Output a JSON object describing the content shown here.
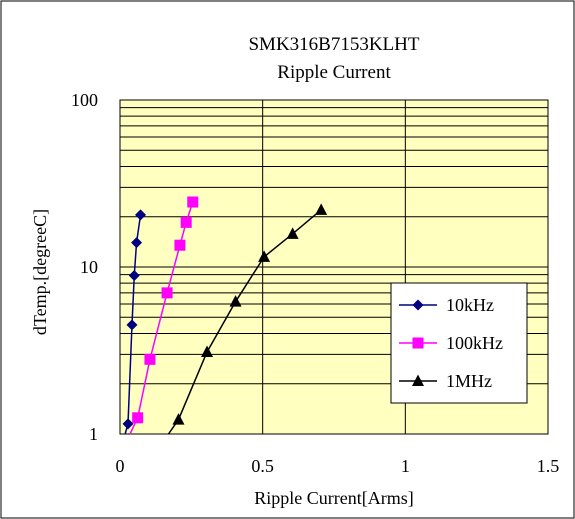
{
  "chart_data": {
    "type": "scatter",
    "title": "SMK316B7153KLHT",
    "subtitle": "Ripple Current",
    "xlabel": "Ripple Current[Arms]",
    "ylabel": "dTemp.[degreeC]",
    "xlim": [
      0,
      1.5
    ],
    "ylim": [
      1,
      100
    ],
    "yscale": "log",
    "x_ticks": [
      "0",
      "0.5",
      "1",
      "1.5"
    ],
    "y_ticks": [
      "1",
      "10",
      "100"
    ],
    "grid": true,
    "plot_background": "#ffffc0",
    "legend_position": "right",
    "series": [
      {
        "name": "10kHz",
        "color": "#000080",
        "marker": "diamond",
        "x": [
          0.028,
          0.042,
          0.05,
          0.058,
          0.072
        ],
        "y": [
          1.15,
          4.5,
          8.9,
          14.0,
          20.5
        ]
      },
      {
        "name": "100kHz",
        "color": "#ff00ff",
        "marker": "square",
        "x": [
          0.062,
          0.105,
          0.165,
          0.21,
          0.232,
          0.255
        ],
        "y": [
          1.25,
          2.8,
          7.0,
          13.5,
          18.5,
          24.5
        ]
      },
      {
        "name": "1MHz",
        "color": "#000000",
        "marker": "triangle",
        "x": [
          0.205,
          0.305,
          0.405,
          0.505,
          0.605,
          0.705
        ],
        "y": [
          1.22,
          3.1,
          6.2,
          11.5,
          15.8,
          22.0
        ]
      }
    ],
    "trend_extension": {
      "10kHz": {
        "x": 0.018,
        "y": 1.0
      },
      "100kHz": {
        "x": 0.035,
        "y": 1.0
      },
      "1MHz": {
        "x": 0.17,
        "y": 1.0
      }
    }
  }
}
